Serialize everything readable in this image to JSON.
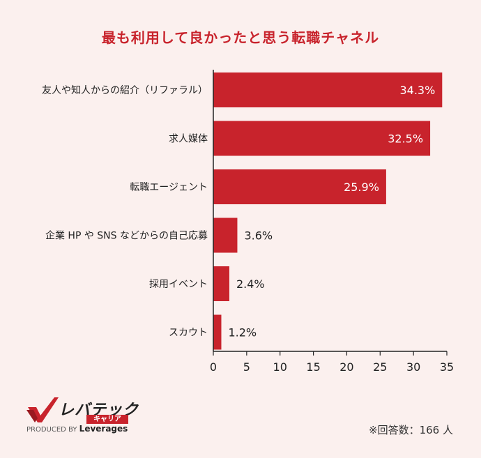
{
  "chart_data": {
    "type": "bar",
    "orientation": "horizontal",
    "title": "最も利用して良かったと思う転職チャネル",
    "categories": [
      "友人や知人からの紹介（リファラル）",
      "求人媒体",
      "転職エージェント",
      "企業 HP や SNS などからの自己応募",
      "採用イベント",
      "スカウト"
    ],
    "values": [
      34.3,
      32.5,
      25.9,
      3.6,
      2.4,
      1.2
    ],
    "value_labels": [
      "34.3%",
      "32.5%",
      "25.9%",
      "3.6%",
      "2.4%",
      "1.2%"
    ],
    "xlim": [
      0,
      35
    ],
    "xticks": [
      "0",
      "5",
      "10",
      "15",
      "20",
      "25",
      "30",
      "35"
    ],
    "grid": false,
    "bar_color": "#c8232c"
  },
  "logo": {
    "brand": "レバテック",
    "sub": "キャリア",
    "produced_prefix": "PRODUCED BY",
    "produced_name": "Leverages"
  },
  "footnote": "※回答数：166 人"
}
